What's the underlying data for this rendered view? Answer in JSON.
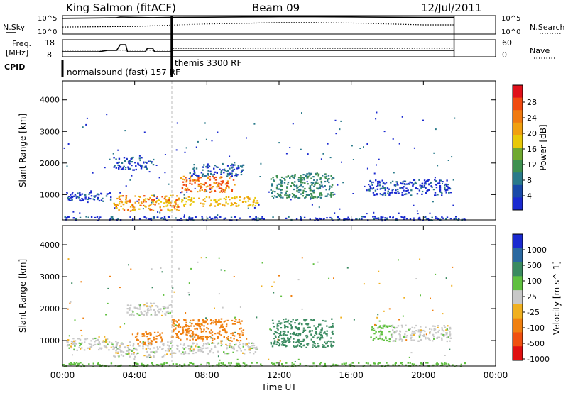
{
  "header": {
    "station": "King Salmon (fitACF)",
    "beam": "Beam 09",
    "date": "12/Jul/2011"
  },
  "panels": {
    "nsky_label": "N.Sky",
    "nsearch_label": "N.Search",
    "freq_label_line1": "Freq.",
    "freq_label_line2": "[MHz]",
    "nave_label": "Nave",
    "cpid_label": "CPID",
    "noise_ticks": [
      "10^5",
      "10^0"
    ],
    "noise_right_ticks": [
      "10^5",
      "10^0"
    ],
    "freq_ticks": [
      "18",
      "8"
    ],
    "nave_ticks": [
      "60",
      "0"
    ],
    "cpid_modes": [
      "normalsound (fast) 157 RF",
      "themis 3300 RF"
    ]
  },
  "power_colorbar": {
    "label": "Power [dB]",
    "ticks": [
      "28",
      "24",
      "20",
      "16",
      "12",
      "8",
      "4"
    ],
    "colors": [
      "#e0101a",
      "#f04a10",
      "#f07a10",
      "#f0a010",
      "#e8c808",
      "#6fa830",
      "#3e9050",
      "#2a7a8a",
      "#1a4aa8",
      "#1a2ad0"
    ]
  },
  "velocity_colorbar": {
    "label": "Velocity [m s^-1]",
    "ticks": [
      "1000",
      "500",
      "100",
      "25",
      "-25",
      "-100",
      "-500",
      "-1000"
    ],
    "colors": [
      "#1a2ad0",
      "#2a68a0",
      "#3a8a60",
      "#60c040",
      "#c8c8c8",
      "#f0b020",
      "#f08010",
      "#f05010",
      "#e01010"
    ]
  },
  "chart_data": [
    {
      "type": "heatmap",
      "title": "",
      "ylabel": "Slant Range [km]",
      "ylim": [
        200,
        4600
      ],
      "yticks": [
        "4000",
        "3000",
        "2000",
        "1000"
      ],
      "xlim": [
        "00:00",
        "24:00"
      ],
      "quantity": "Power [dB]",
      "regions": [
        {
          "t0": 0.0,
          "t1": 22.3,
          "r0": 200,
          "r1": 330,
          "value": 6
        },
        {
          "t0": 0.2,
          "t1": 2.8,
          "r0": 800,
          "r1": 1100,
          "value": 7
        },
        {
          "t0": 2.8,
          "t1": 6.5,
          "r0": 500,
          "r1": 1000,
          "value": 22
        },
        {
          "t0": 2.8,
          "t1": 5.0,
          "r0": 1800,
          "r1": 2200,
          "value": 7
        },
        {
          "t0": 6.5,
          "t1": 10.8,
          "r0": 650,
          "r1": 950,
          "value": 20
        },
        {
          "t0": 6.5,
          "t1": 9.5,
          "r0": 1100,
          "r1": 1600,
          "value": 24
        },
        {
          "t0": 7.0,
          "t1": 10.0,
          "r0": 1600,
          "r1": 2000,
          "value": 8
        },
        {
          "t0": 11.5,
          "t1": 15.0,
          "r0": 900,
          "r1": 1700,
          "value": 12
        },
        {
          "t0": 16.8,
          "t1": 21.5,
          "r0": 1000,
          "r1": 1500,
          "value": 6
        }
      ]
    },
    {
      "type": "heatmap",
      "title": "",
      "ylabel": "Slant Range [km]",
      "xlabel": "Time UT",
      "ylim": [
        200,
        4600
      ],
      "yticks": [
        "4000",
        "3000",
        "2000",
        "1000"
      ],
      "xticks": [
        "00:00",
        "04:00",
        "08:00",
        "12:00",
        "16:00",
        "20:00",
        "00:00"
      ],
      "xlim": [
        "00:00",
        "24:00"
      ],
      "quantity": "Velocity [m s^-1]",
      "regions": [
        {
          "t0": 0.0,
          "t1": 22.3,
          "r0": 200,
          "r1": 330,
          "value": 60
        },
        {
          "t0": 0.2,
          "t1": 2.8,
          "r0": 700,
          "r1": 1100,
          "value": 0
        },
        {
          "t0": 2.8,
          "t1": 6.0,
          "r0": 500,
          "r1": 1000,
          "value": 0
        },
        {
          "t0": 4.0,
          "t1": 5.5,
          "r0": 900,
          "r1": 1300,
          "value": -150
        },
        {
          "t0": 3.5,
          "t1": 6.0,
          "r0": 1800,
          "r1": 2200,
          "value": 0
        },
        {
          "t0": 6.0,
          "t1": 10.8,
          "r0": 600,
          "r1": 950,
          "value": 0
        },
        {
          "t0": 6.0,
          "t1": 10.0,
          "r0": 1000,
          "r1": 1700,
          "value": -150
        },
        {
          "t0": 11.5,
          "t1": 15.0,
          "r0": 800,
          "r1": 1700,
          "value": 200
        },
        {
          "t0": 17.0,
          "t1": 18.2,
          "r0": 1000,
          "r1": 1500,
          "value": 50
        },
        {
          "t0": 18.2,
          "t1": 21.5,
          "r0": 1000,
          "r1": 1500,
          "value": 0
        }
      ]
    }
  ],
  "noise_series": {
    "sky_log10": [
      [
        0,
        4.6
      ],
      [
        2,
        4.7
      ],
      [
        3,
        4.8
      ],
      [
        3.2,
        5.0
      ],
      [
        5,
        4.8
      ],
      [
        6,
        4.9
      ],
      [
        8,
        4.95
      ],
      [
        10,
        5.05
      ],
      [
        12,
        5.1
      ],
      [
        14,
        5.1
      ],
      [
        16,
        5.05
      ],
      [
        18,
        4.95
      ],
      [
        20,
        4.9
      ],
      [
        21.7,
        4.9
      ]
    ],
    "search_log10": [
      [
        0,
        1.8
      ],
      [
        2,
        1.9
      ],
      [
        4,
        2.0
      ],
      [
        6,
        2.4
      ],
      [
        8,
        2.8
      ],
      [
        10,
        3.0
      ],
      [
        12,
        3.2
      ],
      [
        14,
        3.2
      ],
      [
        16,
        3.1
      ],
      [
        18,
        2.8
      ],
      [
        20,
        2.5
      ],
      [
        21.7,
        2.5
      ]
    ]
  },
  "freq_series": {
    "freq_mhz": [
      [
        0,
        10.5
      ],
      [
        2,
        10.5
      ],
      [
        2.5,
        11.5
      ],
      [
        3,
        11.5
      ],
      [
        3.2,
        15.5
      ],
      [
        3.5,
        15.5
      ],
      [
        3.6,
        10.5
      ],
      [
        4.6,
        10.5
      ],
      [
        4.7,
        13
      ],
      [
        5,
        13
      ],
      [
        5.1,
        10.5
      ],
      [
        6,
        10.5
      ],
      [
        6.05,
        11.5
      ],
      [
        21.7,
        11.5
      ]
    ],
    "nave": [
      [
        0,
        22
      ],
      [
        6,
        22
      ],
      [
        6.05,
        30
      ],
      [
        21.7,
        30
      ]
    ]
  }
}
